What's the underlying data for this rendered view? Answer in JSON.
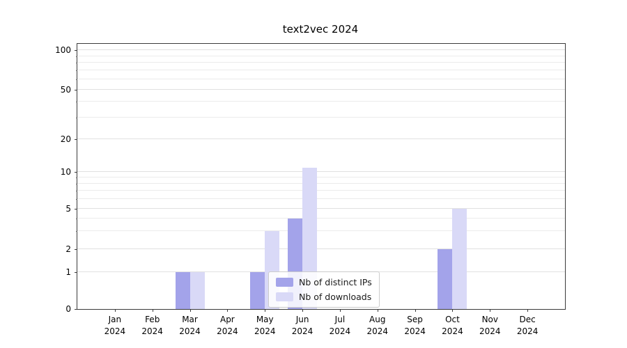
{
  "title": "text2vec 2024",
  "chart_data": {
    "type": "bar",
    "categories": [
      "Jan",
      "Feb",
      "Mar",
      "Apr",
      "May",
      "Jun",
      "Jul",
      "Aug",
      "Sep",
      "Oct",
      "Nov",
      "Dec"
    ],
    "category_year": "2024",
    "series": [
      {
        "name": "Nb of distinct IPs",
        "color": "#a3a3ea",
        "values": [
          0,
          0,
          1,
          0,
          1,
          4,
          0,
          0,
          0,
          2,
          0,
          0
        ]
      },
      {
        "name": "Nb of downloads",
        "color": "#d9d9f7",
        "values": [
          0,
          0,
          1,
          0,
          3,
          11,
          0,
          0,
          0,
          5,
          0,
          0
        ]
      }
    ],
    "title": "text2vec 2024",
    "xlabel": "",
    "ylabel": "",
    "y_ticks": [
      0,
      1,
      2,
      5,
      10,
      20,
      50,
      100
    ],
    "y_minor_gridlines": [
      3,
      4,
      6,
      7,
      8,
      9,
      30,
      40,
      60,
      70,
      80,
      90
    ],
    "y_scale": "symlog",
    "ylim": [
      0,
      120
    ],
    "grid": true,
    "legend_position": "lower center"
  }
}
